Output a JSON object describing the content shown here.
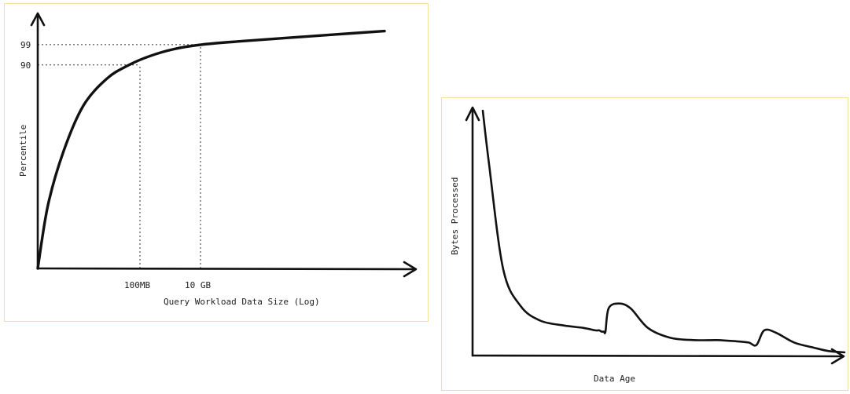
{
  "chart_data": [
    {
      "type": "line",
      "title": "",
      "xlabel": "Query Workload Data Size (Log)",
      "ylabel": "Percentile",
      "x_scale": "log",
      "x_ticks": [
        {
          "label": "100MB"
        },
        {
          "label": "10 GB"
        }
      ],
      "y_ticks": [
        {
          "label": "90",
          "value": 90
        },
        {
          "label": "99",
          "value": 99
        }
      ],
      "series": [
        {
          "values": [
            0,
            28,
            52,
            72,
            84,
            90,
            94,
            97,
            99,
            100.5,
            102,
            103.5,
            105
          ]
        }
      ],
      "grid": false,
      "legend": "none"
    },
    {
      "type": "line",
      "title": "",
      "xlabel": "Data Age",
      "ylabel": "Bytes Processed",
      "grid": false,
      "legend": "none",
      "series": [
        {
          "values": [
            100,
            78,
            35,
            20,
            14,
            12,
            11,
            10,
            10,
            9.5,
            9.5,
            9.5,
            19,
            21,
            19,
            11,
            7,
            6,
            6,
            5.5,
            5,
            4,
            10,
            9,
            5,
            3,
            1.5,
            1
          ]
        }
      ]
    }
  ]
}
